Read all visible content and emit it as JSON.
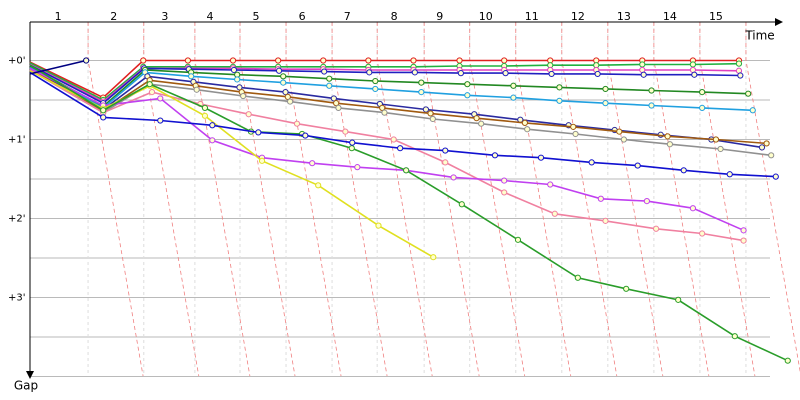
{
  "chart_data": {
    "type": "line",
    "xlabel": "Time",
    "ylabel": "Gap",
    "xlim": [
      0,
      16.4
    ],
    "ylim": [
      -0.5,
      4
    ],
    "grid": true,
    "y_inverted": true,
    "xticks": [
      {
        "value": 0.61,
        "label": "1"
      },
      {
        "value": 1.82,
        "label": "2"
      },
      {
        "value": 2.93,
        "label": "3"
      },
      {
        "value": 3.91,
        "label": "4"
      },
      {
        "value": 4.91,
        "label": "5"
      },
      {
        "value": 5.91,
        "label": "6"
      },
      {
        "value": 6.89,
        "label": "7"
      },
      {
        "value": 7.91,
        "label": "8"
      },
      {
        "value": 8.9,
        "label": "9"
      },
      {
        "value": 9.9,
        "label": "10"
      },
      {
        "value": 10.9,
        "label": "11"
      },
      {
        "value": 11.9,
        "label": "12"
      },
      {
        "value": 12.9,
        "label": "13"
      },
      {
        "value": 13.9,
        "label": "14"
      },
      {
        "value": 14.9,
        "label": "15"
      }
    ],
    "yticks": [
      {
        "value": 0,
        "label": "+0'"
      },
      {
        "value": 0.5,
        "label": null
      },
      {
        "value": 1,
        "label": "+1'"
      },
      {
        "value": 1.5,
        "label": null
      },
      {
        "value": 2,
        "label": "+2'"
      },
      {
        "value": 2.5,
        "label": null
      },
      {
        "value": 3,
        "label": "+3'"
      },
      {
        "value": 3.5,
        "label": null
      },
      {
        "value": 4,
        "label": null
      }
    ],
    "series": [
      {
        "color": "#e02020",
        "x": [
          0,
          1.59,
          2.46,
          3.43,
          4.41,
          5.39,
          6.37,
          7.35,
          8.33,
          9.33,
          10.3,
          11.3,
          12.3,
          13.3,
          14.4,
          15.4
        ],
        "values": [
          0.02,
          0.47,
          0,
          0,
          0,
          0,
          0,
          0,
          0,
          0,
          0,
          0,
          0,
          0,
          0,
          0
        ]
      },
      {
        "color": "#20b040",
        "x": [
          0,
          1.59,
          2.46,
          3.43,
          4.41,
          5.39,
          6.37,
          7.35,
          8.33,
          9.33,
          10.3,
          11.3,
          12.3,
          13.3,
          14.4,
          15.4
        ],
        "values": [
          0.03,
          0.5,
          0.08,
          0.08,
          0.08,
          0.08,
          0.08,
          0.08,
          0.08,
          0.07,
          0.07,
          0.06,
          0.06,
          0.05,
          0.05,
          0.04
        ]
      },
      {
        "color": "#e040c0",
        "x": [
          0,
          1.59,
          2.46,
          3.43,
          4.41,
          5.39,
          6.37,
          7.35,
          8.33,
          9.33,
          10.3,
          11.3,
          12.3,
          13.3,
          14.4,
          15.4
        ],
        "values": [
          0.05,
          0.52,
          0.1,
          0.1,
          0.1,
          0.11,
          0.11,
          0.12,
          0.12,
          0.12,
          0.12,
          0.12,
          0.12,
          0.12,
          0.12,
          0.13
        ]
      },
      {
        "color": "#2020c0",
        "x": [
          0,
          1.59,
          2.48,
          3.45,
          4.43,
          5.41,
          6.39,
          7.37,
          8.36,
          9.36,
          10.33,
          11.33,
          12.33,
          13.33,
          14.43,
          15.43
        ],
        "values": [
          0.06,
          0.54,
          0.1,
          0.11,
          0.12,
          0.13,
          0.14,
          0.15,
          0.15,
          0.16,
          0.16,
          0.17,
          0.17,
          0.18,
          0.18,
          0.19
        ]
      },
      {
        "color": "#228822",
        "x": [
          0,
          1.59,
          2.5,
          3.5,
          4.5,
          5.5,
          6.5,
          7.5,
          8.5,
          9.5,
          10.5,
          11.5,
          12.5,
          13.5,
          14.6,
          15.6
        ],
        "values": [
          0.08,
          0.58,
          0.12,
          0.15,
          0.18,
          0.2,
          0.23,
          0.26,
          0.28,
          0.3,
          0.32,
          0.34,
          0.36,
          0.38,
          0.4,
          0.42
        ]
      },
      {
        "color": "#20a0e0",
        "x": [
          0,
          1.59,
          2.5,
          3.5,
          4.5,
          5.5,
          6.5,
          7.5,
          8.5,
          9.5,
          10.5,
          11.5,
          12.5,
          13.5,
          14.6,
          15.7
        ],
        "values": [
          0.09,
          0.6,
          0.15,
          0.2,
          0.24,
          0.28,
          0.32,
          0.36,
          0.4,
          0.44,
          0.47,
          0.51,
          0.54,
          0.57,
          0.6,
          0.63
        ]
      },
      {
        "color": "#2a2aa0",
        "x": [
          0,
          1.59,
          2.55,
          3.55,
          4.55,
          5.55,
          6.6,
          7.6,
          8.6,
          9.65,
          10.65,
          11.7,
          12.7,
          13.7,
          14.8,
          15.9
        ],
        "values": [
          0.1,
          0.62,
          0.2,
          0.27,
          0.34,
          0.4,
          0.48,
          0.55,
          0.62,
          0.68,
          0.75,
          0.82,
          0.88,
          0.94,
          1.0,
          1.1
        ]
      },
      {
        "color": "#a05a10",
        "x": [
          0,
          1.59,
          2.6,
          3.6,
          4.6,
          5.6,
          6.65,
          7.65,
          8.7,
          9.7,
          10.75,
          11.8,
          12.8,
          13.85,
          14.9,
          16.0
        ],
        "values": [
          0.11,
          0.64,
          0.25,
          0.32,
          0.4,
          0.46,
          0.54,
          0.6,
          0.67,
          0.73,
          0.79,
          0.84,
          0.9,
          0.96,
          1.0,
          1.05
        ]
      },
      {
        "color": "#909090",
        "x": [
          0,
          1.59,
          2.6,
          3.62,
          4.63,
          5.65,
          6.7,
          7.7,
          8.75,
          9.8,
          10.8,
          11.85,
          12.9,
          13.9,
          15.0,
          16.1
        ],
        "values": [
          0.12,
          0.66,
          0.3,
          0.37,
          0.45,
          0.52,
          0.6,
          0.66,
          0.74,
          0.8,
          0.87,
          0.93,
          1.0,
          1.06,
          1.12,
          1.2
        ]
      },
      {
        "color": "#f080a0",
        "x": [
          0,
          1.59,
          2.65,
          3.7,
          4.75,
          5.8,
          6.85,
          7.9,
          9.02,
          10.3,
          11.4,
          12.5,
          13.6,
          14.6,
          15.5
        ],
        "values": [
          0.12,
          0.66,
          0.4,
          0.55,
          0.68,
          0.8,
          0.9,
          1.0,
          1.29,
          1.67,
          1.94,
          2.03,
          2.13,
          2.19,
          2.28
        ]
      },
      {
        "color": "#c040f0",
        "x": [
          0,
          1.59,
          2.83,
          3.96,
          5.04,
          6.13,
          7.11,
          8.17,
          9.2,
          10.3,
          11.3,
          12.4,
          13.4,
          14.4,
          15.5
        ],
        "values": [
          0.1,
          0.57,
          0.48,
          1.01,
          1.23,
          1.3,
          1.35,
          1.39,
          1.48,
          1.52,
          1.57,
          1.75,
          1.78,
          1.87,
          2.15
        ]
      },
      {
        "color": "#e0e020",
        "x": [
          0,
          1.59,
          2.61,
          3.8,
          5.04,
          6.26,
          7.57,
          8.76
        ],
        "values": [
          0.13,
          0.61,
          0.32,
          0.7,
          1.27,
          1.58,
          2.09,
          2.49
        ]
      },
      {
        "color": "#2a9d2a",
        "x": [
          0,
          1.59,
          2.6,
          3.8,
          4.8,
          5.91,
          6.99,
          8.17,
          9.38,
          10.6,
          11.9,
          12.95,
          14.08,
          15.31,
          16.46
        ],
        "values": [
          0.06,
          0.63,
          0.3,
          0.6,
          0.9,
          0.93,
          1.11,
          1.39,
          1.82,
          2.27,
          2.75,
          2.89,
          3.03,
          3.49,
          3.8
        ]
      },
      {
        "color": "#1010d0",
        "x": [
          0,
          1.59,
          2.83,
          3.96,
          4.96,
          5.98,
          7.0,
          8.04,
          9.02,
          10.1,
          11.1,
          12.2,
          13.2,
          14.2,
          15.2,
          16.2
        ],
        "values": [
          0.15,
          0.72,
          0.76,
          0.82,
          0.91,
          0.95,
          1.04,
          1.11,
          1.14,
          1.2,
          1.23,
          1.29,
          1.33,
          1.39,
          1.44,
          1.47
        ]
      },
      {
        "color": "#000080",
        "x": [
          0,
          1.22
        ],
        "values": [
          0.17,
          0
        ]
      }
    ]
  }
}
